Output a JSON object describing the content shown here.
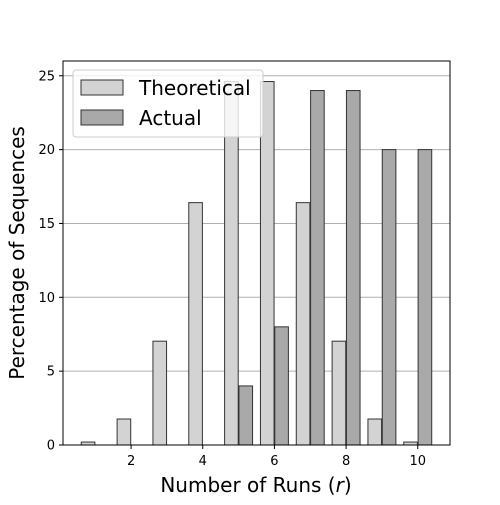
{
  "chart_data": {
    "type": "bar",
    "xlabel_text": "Number of Runs (",
    "xlabel_var": "r",
    "xlabel_close": ")",
    "ylabel": "Percentage of Sequences",
    "xlim": [
      0.1,
      10.9
    ],
    "ylim": [
      0,
      26
    ],
    "xticks": [
      2,
      4,
      6,
      8,
      10
    ],
    "yticks": [
      0,
      5,
      10,
      15,
      20,
      25
    ],
    "grid": "y-major",
    "legend_position": "top-left",
    "bar_width": 0.38,
    "series": [
      {
        "name": "Theoretical",
        "color": "#d3d3d3",
        "offset": -0.2,
        "x": [
          1,
          2,
          3,
          4,
          5,
          6,
          7,
          8,
          9,
          10
        ],
        "values": [
          0.2,
          1.76,
          7.03,
          16.41,
          24.61,
          24.61,
          16.41,
          7.03,
          1.76,
          0.2
        ]
      },
      {
        "name": "Actual",
        "color": "#a9a9a9",
        "offset": 0.2,
        "x": [
          1,
          2,
          3,
          4,
          5,
          6,
          7,
          8,
          9,
          10
        ],
        "values": [
          0,
          0,
          0,
          0,
          4,
          8,
          24,
          24,
          20,
          20
        ]
      }
    ]
  }
}
